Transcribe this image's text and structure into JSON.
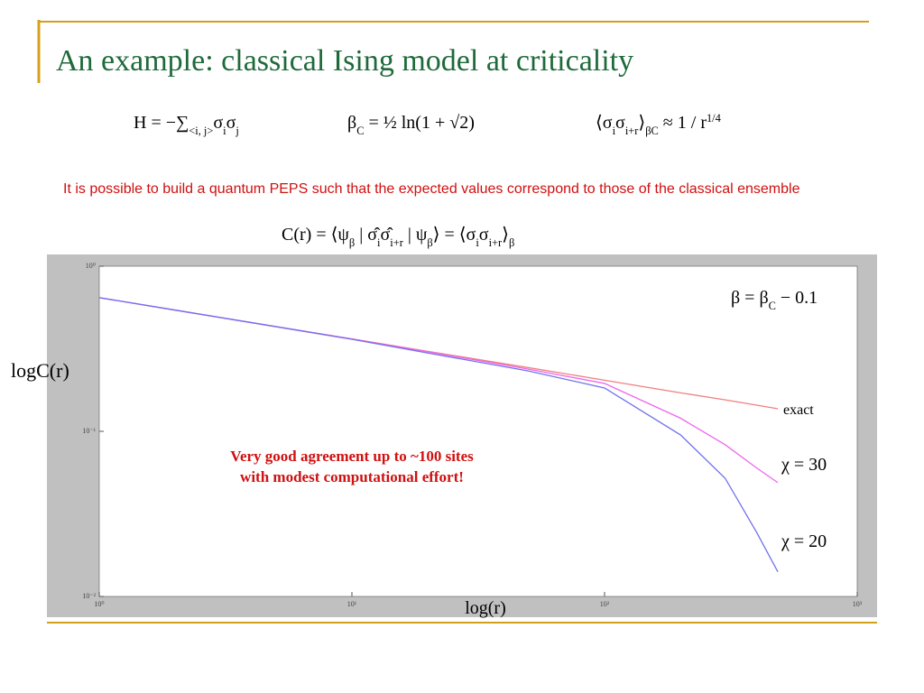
{
  "title": "An example: classical Ising model at criticality",
  "equations": [
    [
      "H = −∑",
      {
        "sub": "<i, j>"
      },
      "σ",
      {
        "sub": "i"
      },
      "σ",
      {
        "sub": "j"
      }
    ],
    [
      "β",
      {
        "sub": "C"
      },
      " = ½ ln(1 + √2)"
    ],
    [
      "⟨σ",
      {
        "sub": "i"
      },
      "σ",
      {
        "sub": "i+r"
      },
      "⟩",
      {
        "sub": "βC"
      },
      "  ≈  1 / r",
      {
        "sup": "1/4"
      }
    ],
    [
      "C(r) = ⟨ψ",
      {
        "sub": "β"
      },
      " | σ̂",
      {
        "sub": "i"
      },
      "σ̂",
      {
        "sub": "i+r"
      },
      " | ψ",
      {
        "sub": "β"
      },
      "⟩ = ⟨σ",
      {
        "sub": "i"
      },
      "σ",
      {
        "sub": "i+r"
      },
      "⟩",
      {
        "sub": "β"
      }
    ]
  ],
  "text": "It is possible to build a quantum PEPS such that the expected values correspond to those of the classical ensemble",
  "chart_data": {
    "type": "line",
    "x_label": "log(r)",
    "y_label": "logC(r)",
    "annotation_equation": [
      "β = β",
      {
        "sub": "C"
      },
      " − 0.1"
    ],
    "annotation": [
      "Very good agreement up to ~100 sites",
      "with modest computational effort!"
    ],
    "log_x": true,
    "log_y": true,
    "x": [
      1,
      2,
      5,
      10,
      20,
      50,
      100,
      200,
      300,
      400,
      485
    ],
    "series": [
      {
        "name": "exact",
        "color": "#f08080",
        "values": [
          0.645,
          0.542,
          0.431,
          0.363,
          0.305,
          0.243,
          0.204,
          0.171,
          0.155,
          0.144,
          0.137
        ]
      },
      {
        "name": "χ = 30",
        "color": "#ee66ee",
        "values": [
          0.645,
          0.542,
          0.431,
          0.362,
          0.303,
          0.238,
          0.195,
          0.12,
          0.083,
          0.06,
          0.0489
        ]
      },
      {
        "name": "χ = 20",
        "color": "#7070ee",
        "values": [
          0.645,
          0.542,
          0.43,
          0.361,
          0.298,
          0.232,
          0.183,
          0.095,
          0.052,
          0.0244,
          0.0141
        ]
      }
    ],
    "xlim": [
      1,
      1000
    ],
    "ylim": [
      0.01,
      1
    ],
    "xticks": [
      {
        "value": 1,
        "label": "10⁰"
      },
      {
        "value": 10,
        "label": "10¹"
      },
      {
        "value": 100,
        "label": "10²"
      },
      {
        "value": 1000,
        "label": "10³"
      }
    ],
    "yticks": [
      {
        "value": 0.01,
        "label": "10⁻²"
      },
      {
        "value": 0.1,
        "label": "10⁻¹"
      },
      {
        "value": 1,
        "label": "10⁰"
      }
    ]
  }
}
